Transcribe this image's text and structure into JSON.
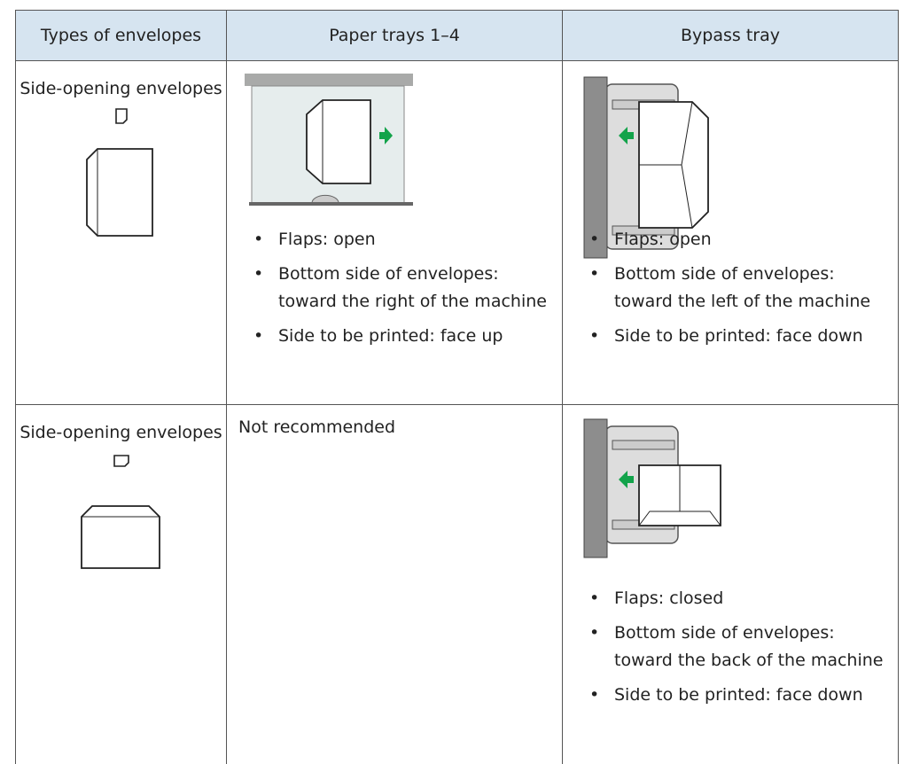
{
  "table": {
    "header": [
      "Types of envelopes",
      "Paper trays 1–4",
      "Bypass tray"
    ],
    "rows": [
      {
        "type": "Side-opening envelopes",
        "paper_trays": [
          "Flaps: open",
          "Bottom side of envelopes: toward the right of the machine",
          "Side to be printed: face up"
        ],
        "bypass_tray": [
          "Flaps: open",
          "Bottom side of envelopes: toward the left of the machine",
          "Side to be printed: face down"
        ]
      },
      {
        "type": "Side-opening envelopes",
        "paper_trays_note": "Not recommended",
        "bypass_tray": [
          "Flaps: closed",
          "Bottom side of envelopes: toward the back of the machine",
          "Side to be printed: face down"
        ]
      }
    ]
  }
}
